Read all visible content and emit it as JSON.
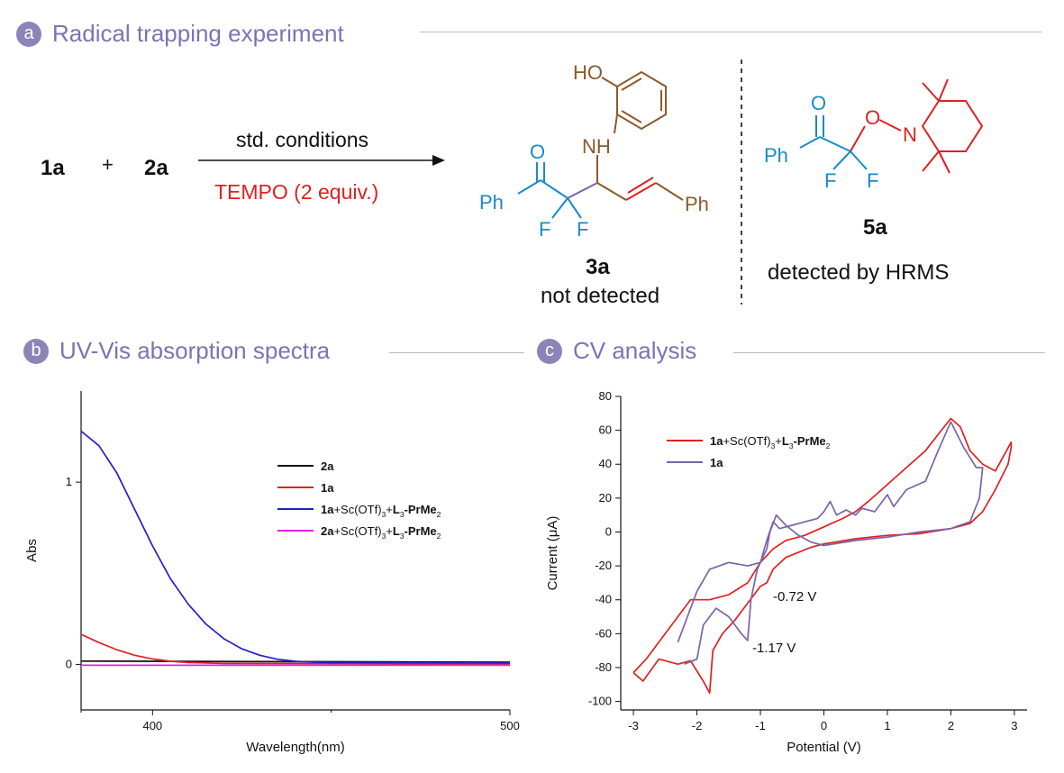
{
  "panel_a": {
    "badge": "a",
    "title": "Radical trapping experiment",
    "reactant1": "1a",
    "plus": "+",
    "reactant2": "2a",
    "conditions": "std. conditions",
    "additive": "TEMPO (2 equiv.)",
    "product_label": "3a",
    "product_status": "not detected",
    "adduct_label": "5a",
    "adduct_status": "detected by HRMS",
    "atoms": {
      "HO": "HO",
      "NH": "NH",
      "O": "O",
      "Ph": "Ph",
      "F": "F",
      "N": "N"
    }
  },
  "panel_b": {
    "badge": "b",
    "title": "UV-Vis absorption spectra"
  },
  "panel_c": {
    "badge": "c",
    "title": "CV analysis"
  },
  "chart_data": [
    {
      "type": "line",
      "xlabel": "Wavelength(nm)",
      "ylabel": "Abs",
      "xlim": [
        380,
        500
      ],
      "ylim": [
        -0.25,
        1.5
      ],
      "xticks": [
        400,
        500
      ],
      "yticks": [
        0,
        1
      ],
      "legend_position": "right",
      "series": [
        {
          "name_parts": [
            "2a"
          ],
          "color": "#111111",
          "x": [
            380,
            500
          ],
          "y": [
            0.018,
            0.012
          ]
        },
        {
          "name_parts": [
            "1a"
          ],
          "color": "#e02020",
          "x": [
            380,
            385,
            390,
            395,
            400,
            405,
            410,
            420,
            500
          ],
          "y": [
            0.165,
            0.12,
            0.08,
            0.05,
            0.03,
            0.017,
            0.01,
            0.005,
            0.003
          ]
        },
        {
          "name_parts": [
            "1a",
            "+Sc(OTf)",
            "3",
            "+",
            "L",
            "3",
            "-PrMe",
            "2"
          ],
          "color": "#2020c8",
          "x": [
            380,
            385,
            390,
            395,
            400,
            405,
            410,
            415,
            420,
            425,
            430,
            435,
            440,
            445,
            450,
            500
          ],
          "y": [
            1.28,
            1.2,
            1.05,
            0.85,
            0.65,
            0.47,
            0.33,
            0.22,
            0.14,
            0.085,
            0.05,
            0.028,
            0.017,
            0.012,
            0.01,
            0.008
          ]
        },
        {
          "name_parts": [
            "2a",
            "+Sc(OTf)",
            "3",
            "+",
            "L",
            "3",
            "-PrMe",
            "2"
          ],
          "color": "#e020e0",
          "x": [
            380,
            500
          ],
          "y": [
            -0.005,
            -0.005
          ]
        }
      ]
    },
    {
      "type": "line",
      "xlabel": "Potential (V)",
      "ylabel": "Current (μA)",
      "xlim": [
        -3.2,
        3.2
      ],
      "ylim": [
        -105,
        80
      ],
      "xticks": [
        -3,
        -2,
        -1,
        0,
        1,
        2,
        3
      ],
      "yticks": [
        80,
        60,
        40,
        20,
        0,
        -20,
        -40,
        -60,
        -80,
        -100
      ],
      "legend_position": "top-left",
      "annotations": [
        "-0.72 V",
        "-1.17 V"
      ],
      "series": [
        {
          "name_parts": [
            "1a",
            "+Sc(OTf)",
            "3",
            "+",
            "L",
            "3",
            "-PrMe",
            "2"
          ],
          "color": "#e02020",
          "x": [
            -3.0,
            -2.85,
            -2.6,
            -2.3,
            -2.1,
            -1.9,
            -1.8,
            -1.75,
            -1.6,
            -1.4,
            -1.2,
            -1.0,
            -0.9,
            -0.8,
            -0.6,
            -0.4,
            -0.2,
            0.0,
            0.5,
            1.0,
            1.5,
            2.0,
            2.3,
            2.5,
            2.7,
            2.9,
            2.95,
            2.95,
            2.7,
            2.5,
            2.3,
            2.15,
            2.0,
            1.85,
            1.6,
            1.3,
            1.0,
            0.7,
            0.5,
            0.3,
            0.0,
            -0.3,
            -0.6,
            -0.8,
            -1.0,
            -1.2,
            -1.5,
            -1.8,
            -2.1,
            -2.5,
            -2.8,
            -3.0
          ],
          "y": [
            -83,
            -88,
            -75,
            -78,
            -76,
            -88,
            -95,
            -70,
            -60,
            -52,
            -42,
            -32,
            -30,
            -22,
            -15,
            -12,
            -9,
            -7,
            -4,
            -2,
            -1,
            2,
            5,
            12,
            25,
            40,
            50,
            53,
            36,
            40,
            48,
            62,
            67,
            60,
            48,
            38,
            28,
            18,
            12,
            8,
            3,
            -2,
            -5,
            -10,
            -18,
            -30,
            -37,
            -40,
            -40,
            -60,
            -75,
            -83
          ]
        },
        {
          "name_parts": [
            "1a"
          ],
          "color": "#7b63a8",
          "x": [
            -2.2,
            -2.0,
            -1.9,
            -1.7,
            -1.5,
            -1.3,
            -1.2,
            -1.15,
            -1.05,
            -0.9,
            -0.85,
            -0.75,
            -0.6,
            -0.4,
            -0.2,
            0.0,
            0.5,
            1.0,
            1.5,
            2.0,
            2.3,
            2.45,
            2.5,
            2.4,
            2.2,
            2.0,
            1.8,
            1.6,
            1.3,
            1.1,
            1.0,
            0.8,
            0.6,
            0.5,
            0.35,
            0.2,
            0.1,
            0.0,
            -0.1,
            -0.3,
            -0.5,
            -0.7,
            -0.8,
            -0.9,
            -1.0,
            -1.2,
            -1.5,
            -1.8,
            -2.0,
            -2.3
          ],
          "y": [
            -78,
            -75,
            -55,
            -45,
            -50,
            -60,
            -64,
            -40,
            -22,
            -10,
            0,
            10,
            4,
            -2,
            -6,
            -8,
            -5,
            -3,
            0,
            2,
            6,
            20,
            38,
            38,
            50,
            65,
            48,
            30,
            25,
            15,
            22,
            12,
            14,
            10,
            13,
            10,
            18,
            12,
            8,
            6,
            4,
            2,
            6,
            -5,
            -18,
            -20,
            -18,
            -22,
            -35,
            -65
          ]
        }
      ]
    }
  ]
}
